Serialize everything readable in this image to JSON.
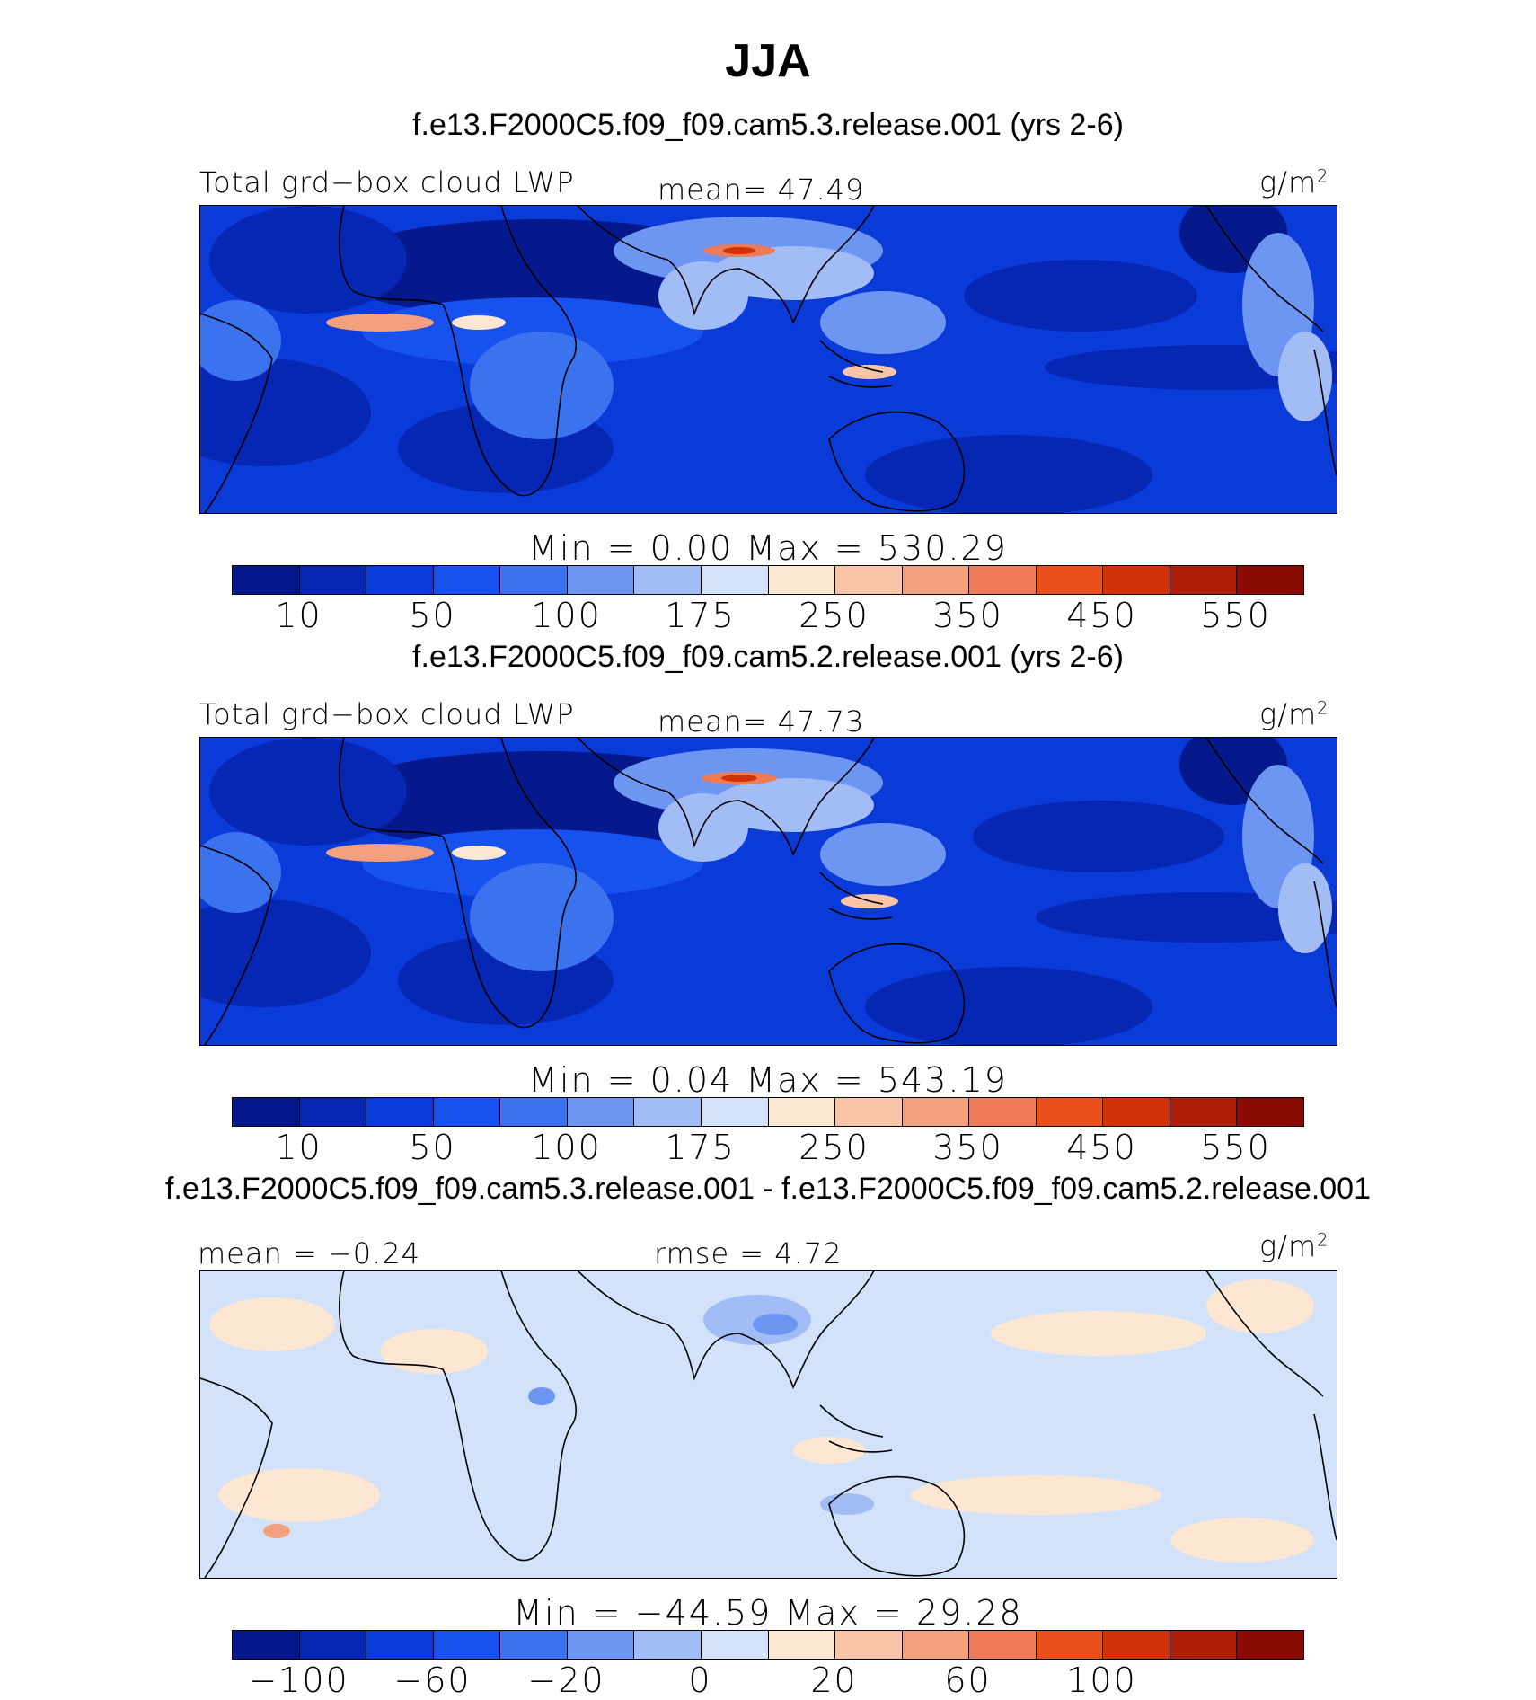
{
  "title": "JJA",
  "colors": {
    "seq_palette": [
      "#05188c",
      "#0626b4",
      "#0a3ad8",
      "#1852ee",
      "#3a72f0",
      "#6d95f2",
      "#a2bdf6",
      "#d2e2fa",
      "#fde6d2",
      "#f8c5a8",
      "#f3a07e",
      "#ee7b55",
      "#e8501e",
      "#d0330a",
      "#ae1e07",
      "#8b0a04"
    ],
    "diff_palette": [
      "#05188c",
      "#0626b4",
      "#0a3ad8",
      "#1852ee",
      "#3a72f0",
      "#6d95f2",
      "#a2bdf6",
      "#d2e2fa",
      "#fde6d2",
      "#f8c5a8",
      "#f3a07e",
      "#ee7b55",
      "#e8501e",
      "#d0330a",
      "#ae1e07",
      "#8b0a04"
    ],
    "coastline": "#000000"
  },
  "panels": [
    {
      "id": "test",
      "case": "f.e13.F2000C5.f09_f09.cam5.3.release.001 (yrs 2-6)",
      "left_label": "Total grd−box cloud LWP",
      "center_label": "mean=  47.49",
      "units_base": "g/m",
      "units_exp": "2",
      "minmax": "Min  =    0.00  Max  =  530.29",
      "ticks": [
        "10",
        "50",
        "100",
        "175",
        "250",
        "350",
        "450",
        "550"
      ]
    },
    {
      "id": "ctrl",
      "case": "f.e13.F2000C5.f09_f09.cam5.2.release.001 (yrs 2-6)",
      "left_label": "Total grd−box cloud LWP",
      "center_label": "mean=  47.73",
      "units_base": "g/m",
      "units_exp": "2",
      "minmax": "Min  =    0.04  Max  =  543.19",
      "ticks": [
        "10",
        "50",
        "100",
        "175",
        "250",
        "350",
        "450",
        "550"
      ]
    },
    {
      "id": "diff",
      "case": "f.e13.F2000C5.f09_f09.cam5.3.release.001 - f.e13.F2000C5.f09_f09.cam5.2.release.001",
      "left_label": "mean =  −0.24",
      "center_label": "rmse =   4.72",
      "units_base": "g/m",
      "units_exp": "2",
      "minmax": "Min  = −44.59  Max  =   29.28",
      "ticks": [
        "−100",
        "−60",
        "−20",
        "0",
        "20",
        "60",
        "100"
      ]
    }
  ],
  "chart_data": [
    {
      "type": "heatmap",
      "title": "f.e13.F2000C5.f09_f09.cam5.3.release.001 (yrs 2-6)",
      "variable": "Total grd−box cloud LWP",
      "units": "g/m2",
      "season": "JJA",
      "mean": 47.49,
      "min": 0.0,
      "max": 530.29,
      "contour_levels": [
        10,
        25,
        50,
        75,
        100,
        125,
        150,
        175,
        200,
        250,
        300,
        350,
        400,
        450,
        500,
        550
      ],
      "colorbar_labels": [
        10,
        50,
        100,
        175,
        250,
        350,
        450,
        550
      ]
    },
    {
      "type": "heatmap",
      "title": "f.e13.F2000C5.f09_f09.cam5.2.release.001 (yrs 2-6)",
      "variable": "Total grd−box cloud LWP",
      "units": "g/m2",
      "season": "JJA",
      "mean": 47.73,
      "min": 0.04,
      "max": 543.19,
      "contour_levels": [
        10,
        25,
        50,
        75,
        100,
        125,
        150,
        175,
        200,
        250,
        300,
        350,
        400,
        450,
        500,
        550
      ],
      "colorbar_labels": [
        10,
        50,
        100,
        175,
        250,
        350,
        450,
        550
      ]
    },
    {
      "type": "heatmap",
      "title": "f.e13.F2000C5.f09_f09.cam5.3.release.001 - f.e13.F2000C5.f09_f09.cam5.2.release.001",
      "units": "g/m2",
      "season": "JJA",
      "mean": -0.24,
      "rmse": 4.72,
      "min": -44.59,
      "max": 29.28,
      "contour_levels": [
        -100,
        -80,
        -60,
        -40,
        -20,
        -10,
        -5,
        0,
        5,
        10,
        20,
        40,
        60,
        80,
        100
      ],
      "colorbar_labels": [
        -100,
        -60,
        -20,
        0,
        20,
        60,
        100
      ]
    }
  ]
}
